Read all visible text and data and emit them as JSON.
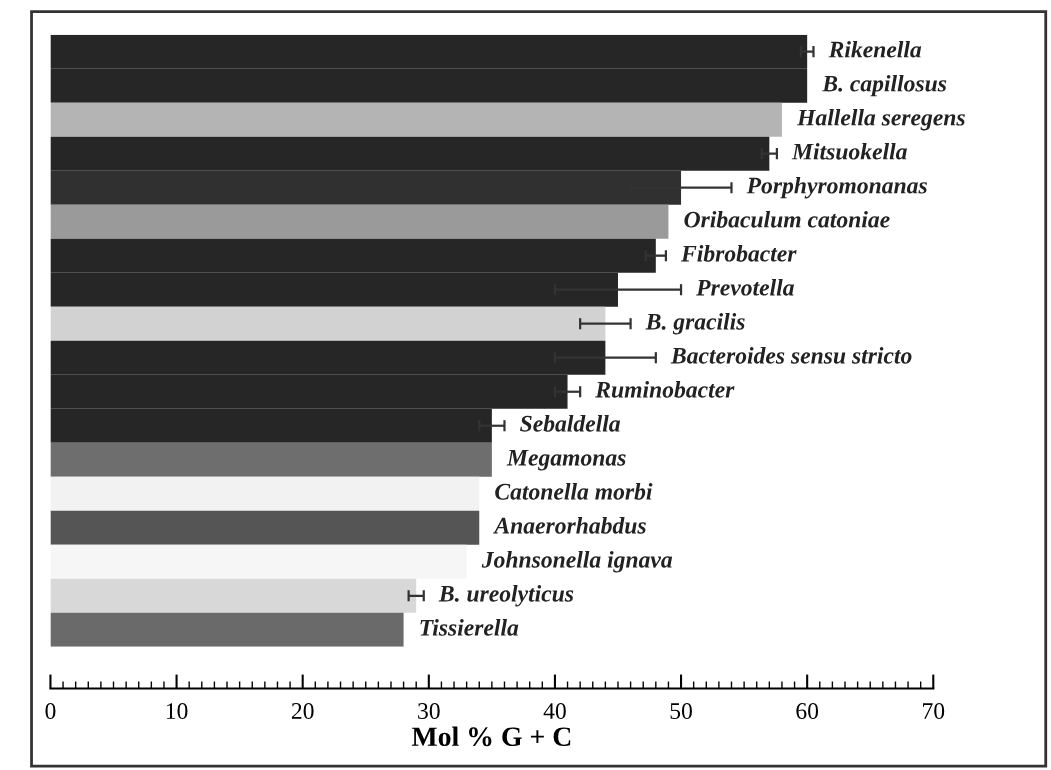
{
  "chart_data": {
    "type": "bar",
    "orientation": "horizontal",
    "xlabel": "Mol % G + C",
    "categories": [
      "Rikenella",
      "B. capillosus",
      "Hallella seregens",
      "Mitsuokella",
      "Porphyromonanas",
      "Oribaculum catoniae",
      "Fibrobacter",
      "Prevotella",
      "B. gracilis",
      "Bacteroides sensu stricto",
      "Ruminobacter",
      "Sebaldella",
      "Megamonas",
      "Catonella morbi",
      "Anaerorhabdus",
      "Johnsonella ignava",
      "B. ureolyticus",
      "Tissierella"
    ],
    "values": [
      60,
      60,
      58,
      57,
      50,
      49,
      48,
      45,
      44,
      44,
      41,
      35,
      35,
      34,
      34,
      33,
      29,
      28
    ],
    "errors": [
      0.5,
      null,
      null,
      0.6,
      4,
      null,
      0.8,
      5,
      2,
      4,
      1,
      1,
      null,
      null,
      null,
      null,
      0.6,
      null
    ],
    "colors": [
      "#262626",
      "#262626",
      "#b4b4b4",
      "#262626",
      "#303030",
      "#9a9a9a",
      "#262626",
      "#262626",
      "#d2d2d2",
      "#262626",
      "#262626",
      "#262626",
      "#6e6e6e",
      "#f2f2f2",
      "#555555",
      "#f6f6f6",
      "#d8d8d8",
      "#6a6a6a"
    ],
    "xlim": [
      0,
      70
    ],
    "xticks": [
      0,
      10,
      20,
      30,
      40,
      50,
      60,
      70
    ],
    "tick_labels": "x",
    "grid": false,
    "legend": false
  }
}
